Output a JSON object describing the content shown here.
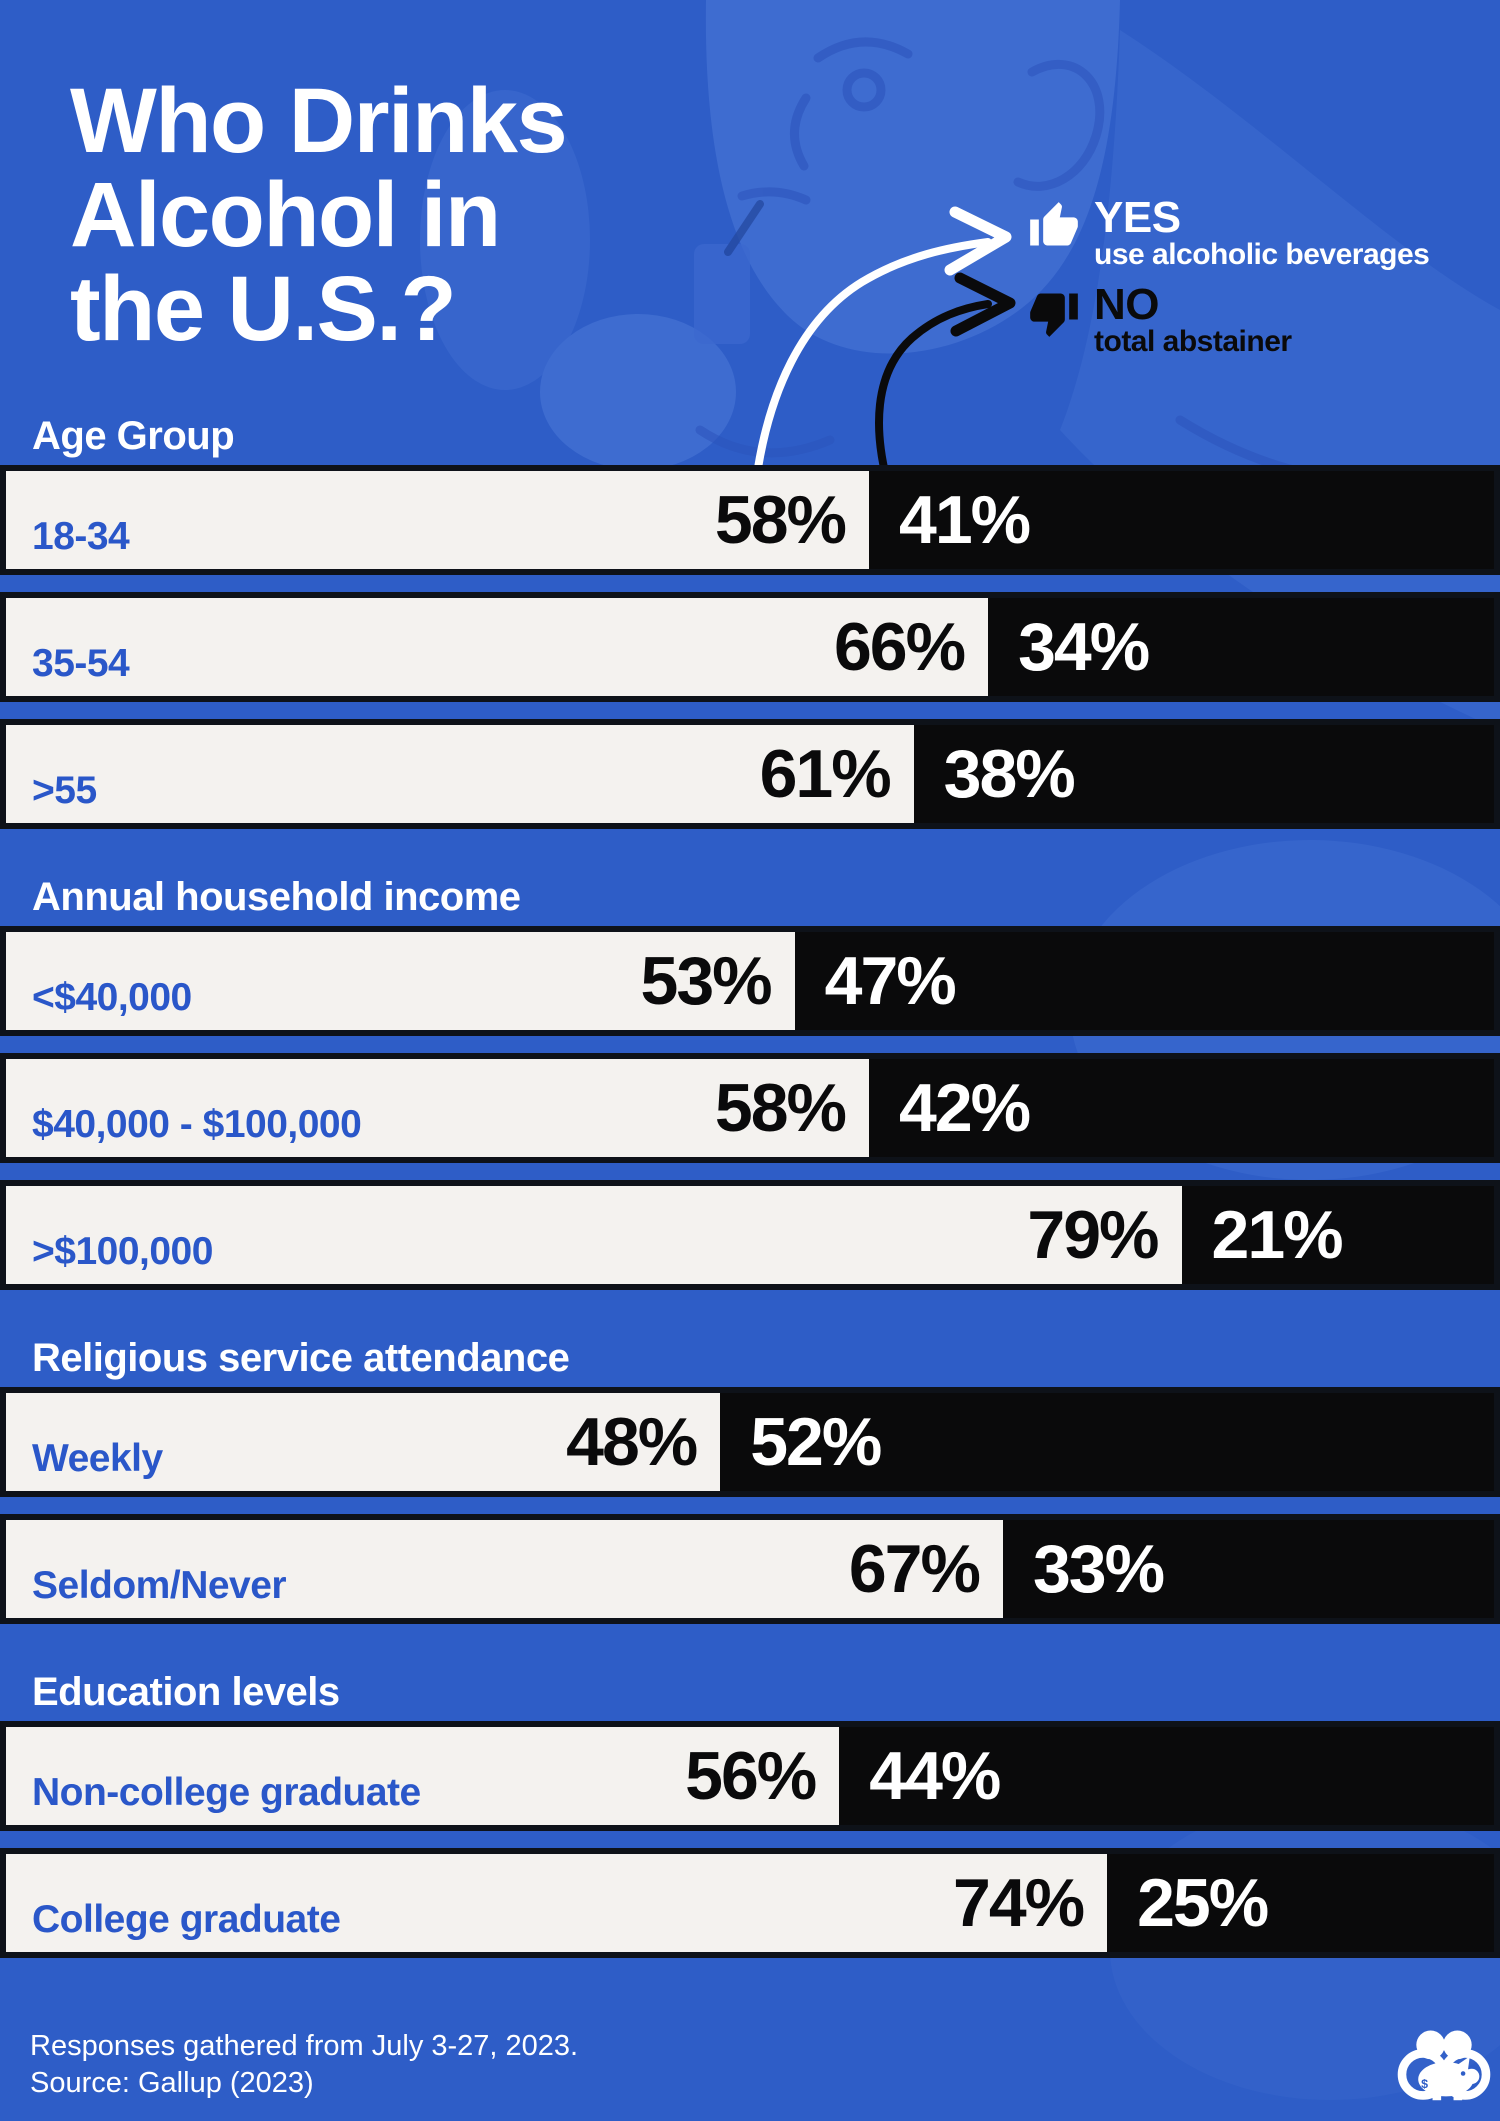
{
  "title": {
    "text": "Who Drinks Alcohol in the U.S.?",
    "lines": [
      "Who Drinks",
      "Alcohol in",
      "the U.S.?"
    ]
  },
  "legend": {
    "yes": {
      "icon": "thumbs-up",
      "label": "YES",
      "sublabel": "use alcoholic beverages"
    },
    "no": {
      "icon": "thumbs-down",
      "label": "NO",
      "sublabel": "total abstainer"
    }
  },
  "chart_data": {
    "type": "bar",
    "orientation": "horizontal",
    "stacked": true,
    "value_suffix": "%",
    "axis_range": [
      0,
      100
    ],
    "series": [
      {
        "name": "YES use alcoholic beverages",
        "color": "#f4f2ef"
      },
      {
        "name": "NO total abstainer",
        "color": "#0a0a0b"
      }
    ],
    "sections": [
      {
        "heading": "Age Group",
        "rows": [
          {
            "label": "18-34",
            "yes_pct": 58,
            "no_pct": 41
          },
          {
            "label": "35-54",
            "yes_pct": 66,
            "no_pct": 34
          },
          {
            "label": ">55",
            "yes_pct": 61,
            "no_pct": 38
          }
        ]
      },
      {
        "heading": "Annual household income",
        "rows": [
          {
            "label": "<$40,000",
            "yes_pct": 53,
            "no_pct": 47
          },
          {
            "label": "$40,000 - $100,000",
            "yes_pct": 58,
            "no_pct": 42
          },
          {
            "label": ">$100,000",
            "yes_pct": 79,
            "no_pct": 21
          }
        ]
      },
      {
        "heading": "Religious service attendance",
        "rows": [
          {
            "label": "Weekly",
            "yes_pct": 48,
            "no_pct": 52
          },
          {
            "label": "Seldom/Never",
            "yes_pct": 67,
            "no_pct": 33
          }
        ]
      },
      {
        "heading": "Education levels",
        "rows": [
          {
            "label": "Non-college graduate",
            "yes_pct": 56,
            "no_pct": 44
          },
          {
            "label": "College graduate",
            "yes_pct": 74,
            "no_pct": 25
          }
        ]
      }
    ]
  },
  "footer": {
    "line1": "Responses gathered from July 3-27, 2023.",
    "line2": "Source: Gallup (2023)"
  },
  "colors": {
    "background": "#2e5dc7",
    "bar_yes": "#f4f2ef",
    "bar_no": "#0a0a0b",
    "bar_outline": "#0e1219",
    "category_label": "#2a57c9",
    "text": "#ffffff"
  }
}
